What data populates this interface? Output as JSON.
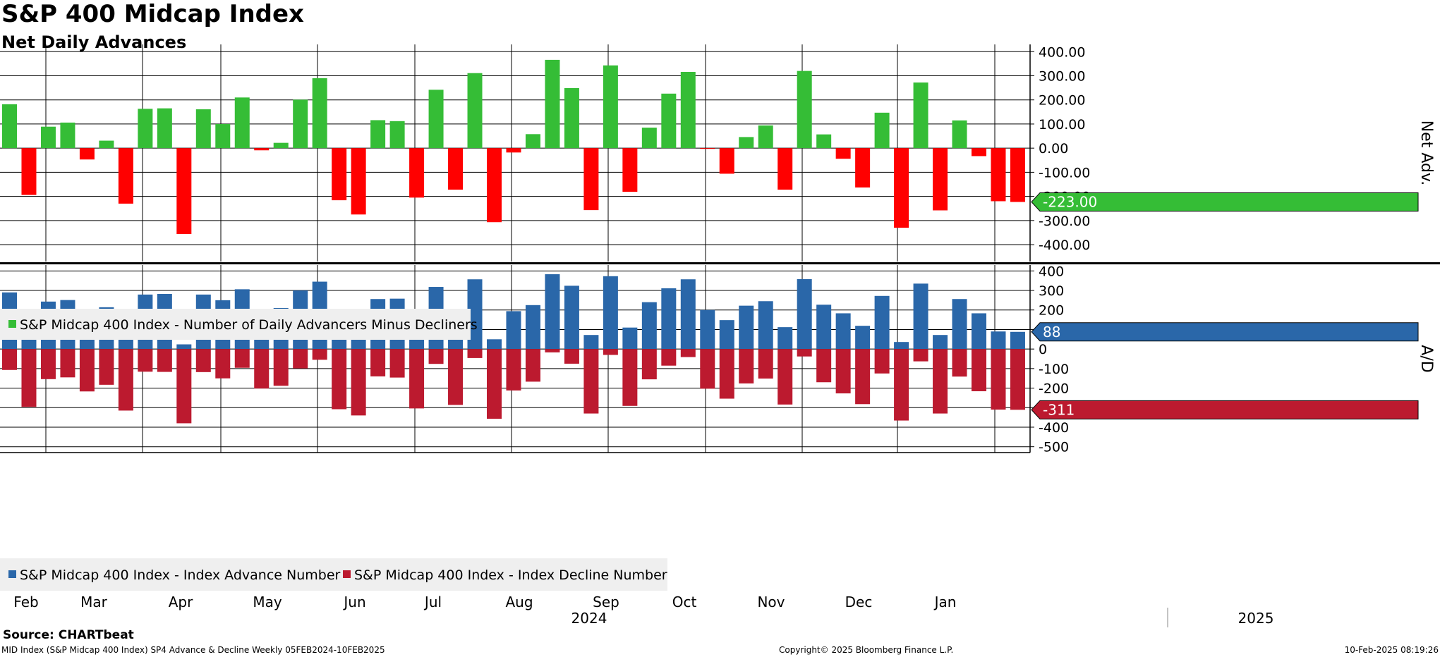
{
  "header": {
    "title": "S&P 400 Midcap Index",
    "subtitle": "Net Daily Advances"
  },
  "footer": {
    "source": "Source: CHARTbeat",
    "description": "MID Index (S&P Midcap 400 Index) SP4 Advance & Decline  Weekly 05FEB2024-10FEB2025",
    "copyright": "Copyright© 2025 Bloomberg Finance L.P.",
    "timestamp": "10-Feb-2025 08:19:26"
  },
  "colors": {
    "positive": "#35BD36",
    "negative": "#FF0000",
    "advance": "#2A67A9",
    "decline": "#BC1A2F",
    "grid": "#000000",
    "tag_net": "#35BD36",
    "tag_adv": "#2A67A9",
    "tag_dec": "#BC1A2F"
  },
  "chart_data": [
    {
      "type": "bar",
      "title": "Net Daily Advances",
      "ylabel": "Net Adv.",
      "ylim": [
        -470,
        430
      ],
      "y_ticks": [
        400,
        300,
        200,
        100,
        0,
        -100,
        -200,
        -300,
        -400
      ],
      "y_tick_labels": [
        "400.00",
        "300.00",
        "200.00",
        "100.00",
        "0.00",
        "-100.00",
        "-200.00",
        "-300.00",
        "-400.00"
      ],
      "legend": [
        "S&P Midcap 400 Index - Number of Daily Advancers Minus Decliners"
      ],
      "last_value_label": "-223.00",
      "series": [
        {
          "name": "S&P Midcap 400 Index - Number of Daily Advancers Minus Decliners",
          "values": [
            182,
            -194,
            89,
            106,
            -47,
            31,
            -230,
            163,
            165,
            -356,
            161,
            100,
            210,
            -9,
            22,
            201,
            290,
            -216,
            -275,
            116,
            112,
            -205,
            242,
            -172,
            311,
            -307,
            -18,
            58,
            366,
            249,
            -257,
            343,
            -181,
            85,
            226,
            316,
            -3,
            -106,
            46,
            94,
            -172,
            320,
            57,
            -44,
            -163,
            147,
            -330,
            272,
            -258,
            115,
            -33,
            -220,
            -223
          ]
        }
      ]
    },
    {
      "type": "bar",
      "title": "Advance & Decline",
      "ylabel": "A/D",
      "ylim": [
        -530,
        430
      ],
      "y_ticks": [
        400,
        300,
        200,
        100,
        0,
        -100,
        -200,
        -300,
        -400,
        -500
      ],
      "y_tick_labels": [
        "400",
        "300",
        "200",
        "100",
        "0",
        "-100",
        "-200",
        "-300",
        "-400",
        "-500"
      ],
      "legend": [
        "S&P Midcap 400 Index - Index Advance Number",
        "S&P Midcap 400 Index - Index Decline Number"
      ],
      "last_value_labels": [
        "88",
        "-311"
      ],
      "series": [
        {
          "name": "S&P Midcap 400 Index - Index Advance Number",
          "values": [
            290,
            102,
            243,
            251,
            176,
            214,
            85,
            279,
            282,
            24,
            279,
            250,
            306,
            193,
            210,
            300,
            345,
            93,
            65,
            256,
            258,
            99,
            318,
            114,
            357,
            50,
            194,
            225,
            383,
            324,
            72,
            373,
            110,
            240,
            311,
            357,
            200,
            148,
            222,
            245,
            112,
            358,
            227,
            183,
            119,
            272,
            36,
            335,
            72,
            256,
            183,
            90,
            88
          ]
        },
        {
          "name": "S&P Midcap 400 Index - Index Decline Number",
          "values": [
            -107,
            -296,
            -154,
            -145,
            -217,
            -183,
            -315,
            -116,
            -117,
            -380,
            -118,
            -150,
            -96,
            -202,
            -188,
            -99,
            -55,
            -308,
            -340,
            -140,
            -146,
            -304,
            -76,
            -286,
            -46,
            -357,
            -212,
            -167,
            -17,
            -75,
            -330,
            -30,
            -291,
            -155,
            -85,
            -41,
            -203,
            -254,
            -176,
            -151,
            -284,
            -38,
            -170,
            -227,
            -282,
            -125,
            -366,
            -63,
            -330,
            -141,
            -216,
            -310,
            -311
          ]
        }
      ]
    }
  ],
  "x_axis": {
    "months": [
      "Feb",
      "Mar",
      "Apr",
      "May",
      "Jun",
      "Jul",
      "Aug",
      "Sep",
      "Oct",
      "Nov",
      "Dec",
      "Jan"
    ],
    "years": [
      "2024",
      "2025"
    ]
  }
}
